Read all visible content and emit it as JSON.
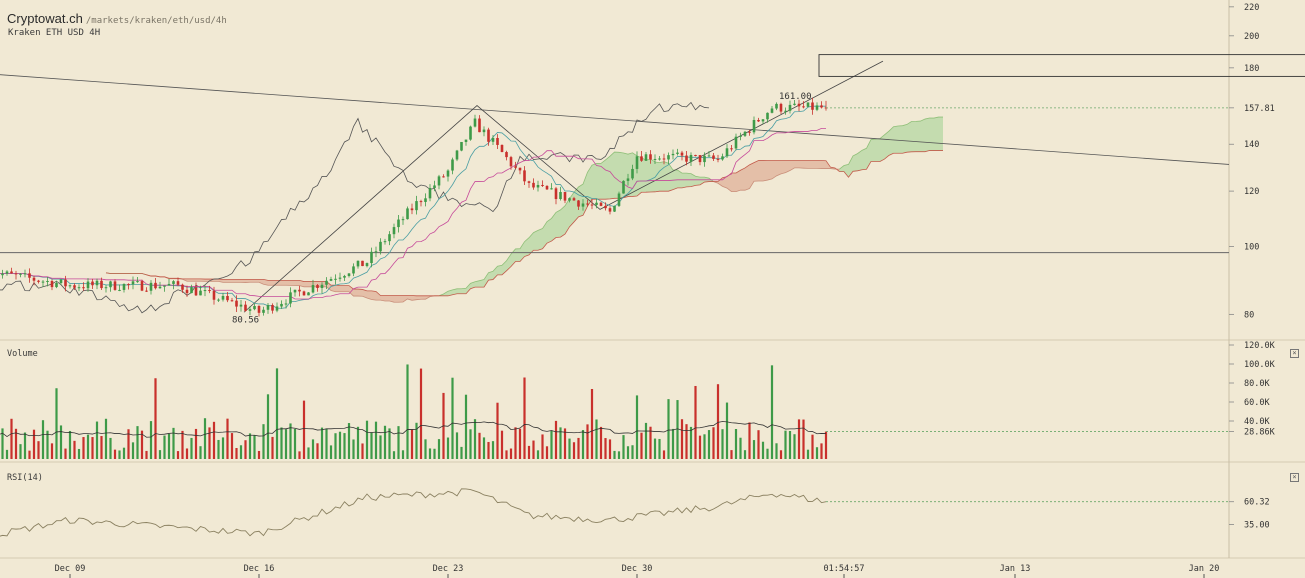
{
  "header": {
    "site": "Cryptowat.ch",
    "path": "/markets/kraken/eth/usd/4h",
    "subtitle": "Kraken ETH USD 4H"
  },
  "panels": {
    "volume_label": "Volume",
    "rsi_label": "RSI(14)",
    "close_glyph": "×"
  },
  "annotations": {
    "high_label": "161.00",
    "low_label": "80.56",
    "last_price_label": "157.81",
    "last_volume_label": "28.86K",
    "last_rsi_label": "60.32",
    "time_label": "01:54:57"
  },
  "colors": {
    "background": "#f1e9d4",
    "up": "#3e9a48",
    "down": "#c9302c",
    "cloud_bull": "#bcd9a8",
    "cloud_bear": "#e2b7a0",
    "tenkan": "#4a9ea3",
    "kijun": "#c64a9a",
    "chikou": "#555555",
    "rsi_line": "#8a8060"
  },
  "chart_data": [
    {
      "type": "candlestick",
      "title": "Kraken ETH USD 4H",
      "y_scale": "log",
      "ylim": [
        75,
        225
      ],
      "y_ticks": [
        80,
        100,
        120,
        140,
        157.81,
        180,
        200,
        220
      ],
      "x_ticks": [
        "Dec 09",
        "Dec 16",
        "Dec 23",
        "Dec 30",
        "01:54:57",
        "Jan 13",
        "Jan 20"
      ],
      "indicators": [
        "Ichimoku Cloud",
        "Tenkan-sen",
        "Kijun-sen",
        "Chikou span"
      ],
      "anchors": {
        "dates": [
          "Dec 06",
          "Dec 09",
          "Dec 13",
          "Dec 16",
          "Dec 20",
          "Dec 23",
          "Dec 24",
          "Dec 26",
          "Dec 29",
          "Dec 30",
          "Jan 02",
          "Jan 04",
          "Jan 06"
        ],
        "close": [
          92,
          88,
          88,
          80.56,
          95,
          128,
          150,
          122,
          112,
          135,
          133,
          158,
          157.81
        ]
      },
      "high": 161.0,
      "low": 80.56,
      "last": 157.81,
      "horizontal_line": 98,
      "rectangle_zone": [
        175,
        188
      ]
    },
    {
      "type": "bar",
      "title": "Volume",
      "ylim": [
        0,
        120000
      ],
      "y_ticks": [
        "120.0K",
        "100.0K",
        "80.0K",
        "60.0K",
        "40.0K",
        "28.86K"
      ],
      "last": 28860,
      "typical_range": [
        8000,
        100000
      ]
    },
    {
      "type": "line",
      "title": "RSI(14)",
      "ylim": [
        0,
        100
      ],
      "y_ticks": [
        60.32,
        35.0
      ],
      "anchors": {
        "dates": [
          "Dec 06",
          "Dec 09",
          "Dec 16",
          "Dec 20",
          "Dec 23",
          "Dec 24",
          "Dec 26",
          "Dec 29",
          "Jan 02",
          "Jan 04",
          "Jan 06"
        ],
        "values": [
          22,
          40,
          25,
          65,
          70,
          72,
          45,
          40,
          55,
          70,
          60.32
        ]
      }
    }
  ]
}
